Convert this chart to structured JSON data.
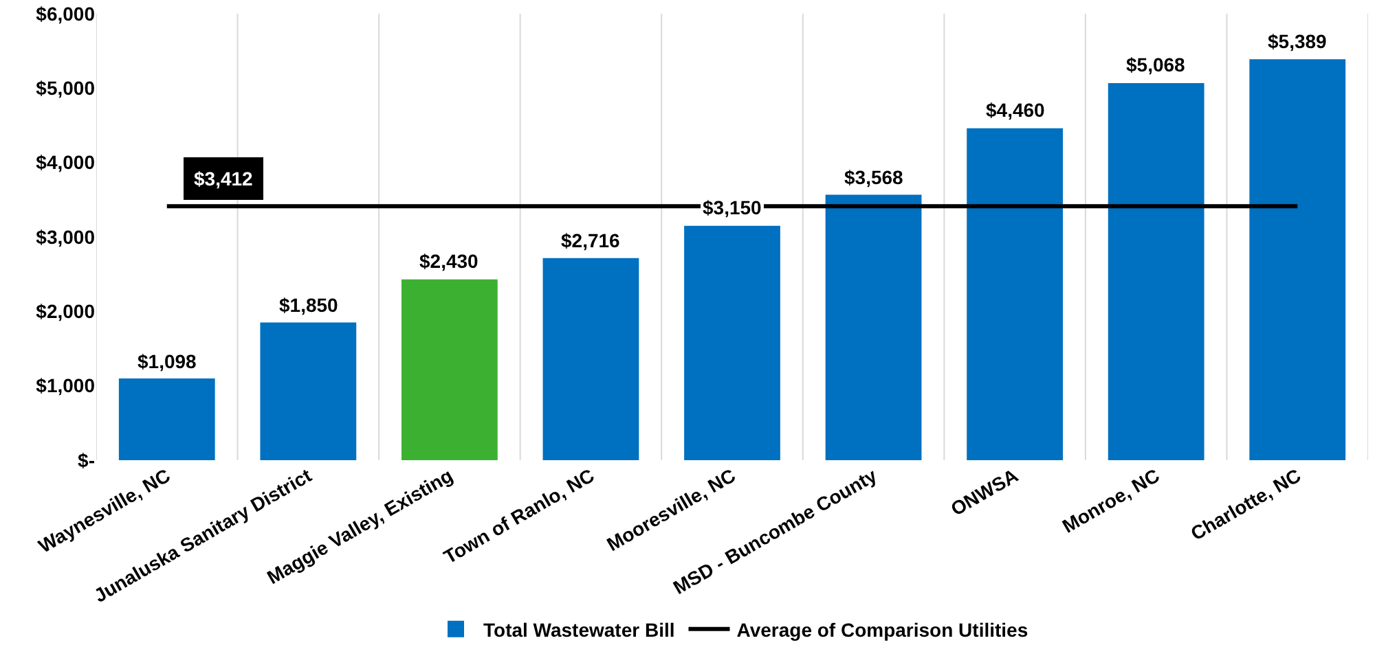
{
  "chart_data": {
    "type": "bar",
    "categories": [
      "Waynesville, NC",
      "Junaluska Sanitary District",
      "Maggie Valley, Existing",
      "Town of Ranlo, NC",
      "Mooresville, NC",
      "MSD - Buncombe County",
      "ONWSA",
      "Monroe, NC",
      "Charlotte, NC"
    ],
    "series": [
      {
        "name": "Total Wastewater Bill",
        "color": "#0070c0",
        "colors": [
          null,
          null,
          "#3cb131",
          null,
          null,
          null,
          null,
          null,
          null
        ],
        "values": [
          1098,
          1850,
          2430,
          2716,
          3150,
          3568,
          4460,
          5068,
          5389
        ],
        "value_labels": [
          "$1,098",
          "$1,850",
          "$2,430",
          "$2,716",
          "$3,150",
          "$3,568",
          "$4,460",
          "$5,068",
          "$5,389"
        ]
      },
      {
        "name": "Average of Comparison Utilities",
        "type": "line",
        "color": "#000000",
        "values": [
          3412,
          3412,
          3412,
          3412,
          null,
          3412,
          3412,
          3412,
          3412
        ],
        "value_labels": [
          "$3,412",
          null,
          null,
          null,
          null,
          null,
          null,
          null,
          null
        ]
      }
    ],
    "ylim": [
      0,
      6000
    ],
    "yticks": [
      {
        "value": 0,
        "label": "$-"
      },
      {
        "value": 1000,
        "label": "$1,000"
      },
      {
        "value": 2000,
        "label": "$2,000"
      },
      {
        "value": 3000,
        "label": "$3,000"
      },
      {
        "value": 4000,
        "label": "$4,000"
      },
      {
        "value": 5000,
        "label": "$5,000"
      },
      {
        "value": 6000,
        "label": "$6,000"
      }
    ],
    "grid": "x",
    "legend": "bottom",
    "marker": "none",
    "line_style": "solid"
  }
}
